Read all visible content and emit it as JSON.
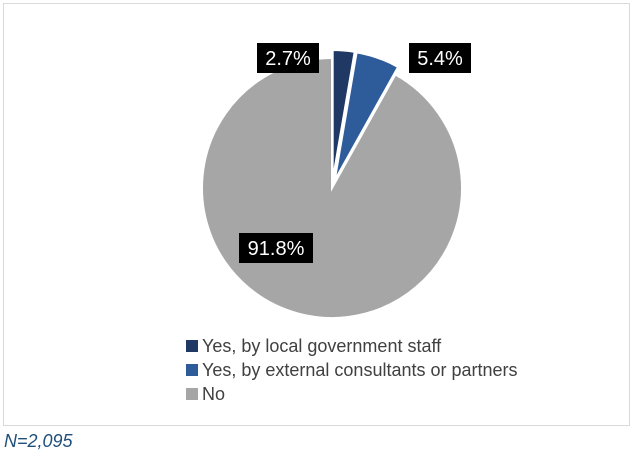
{
  "chart_data": {
    "type": "pie",
    "title": "",
    "slices": [
      {
        "label": "Yes, by local government staff",
        "value": 2.7,
        "display": "2.7%",
        "color": "#1f3864",
        "exploded": true
      },
      {
        "label": "Yes, by external consultants or partners",
        "value": 5.4,
        "display": "5.4%",
        "color": "#2e5c9a",
        "exploded": true
      },
      {
        "label": "No",
        "value": 91.8,
        "display": "91.8%",
        "color": "#a6a6a6",
        "exploded": false
      }
    ],
    "legend_position": "bottom",
    "note": "N=2,095"
  }
}
